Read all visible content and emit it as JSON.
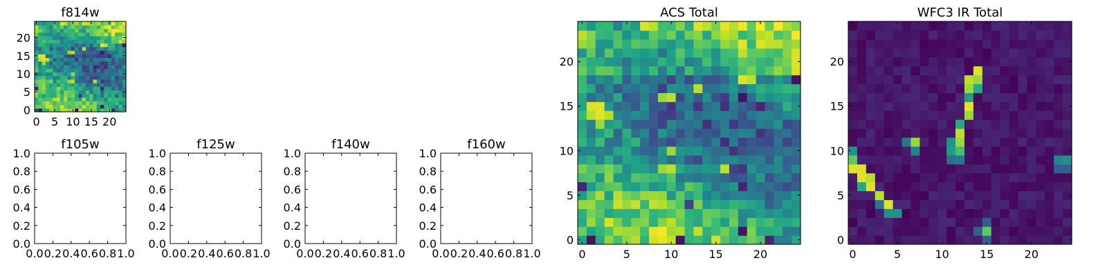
{
  "chart_data": [
    {
      "id": "f814w",
      "type": "heatmap",
      "title": "f814w",
      "colormap": "viridis",
      "xlim": [
        -0.5,
        24.5
      ],
      "ylim": [
        -0.5,
        24.5
      ],
      "xticks": [
        "0",
        "5",
        "10",
        "15",
        "20"
      ],
      "yticks": [
        "0",
        "5",
        "10",
        "15",
        "20"
      ],
      "xtick_values": [
        0,
        5,
        10,
        15,
        20
      ],
      "ytick_values": [
        0,
        5,
        10,
        15,
        20
      ],
      "grid_size": [
        25,
        25
      ],
      "values_source": "acs_total"
    },
    {
      "id": "f105w",
      "type": "empty",
      "title": "f105w",
      "xlim": [
        0,
        1
      ],
      "ylim": [
        0,
        1
      ],
      "xticks": [
        "0.0",
        "0.2",
        "0.4",
        "0.6",
        "0.8",
        "1.0"
      ],
      "yticks": [
        "0.0",
        "0.2",
        "0.4",
        "0.6",
        "0.8",
        "1.0"
      ]
    },
    {
      "id": "f125w",
      "type": "empty",
      "title": "f125w",
      "xlim": [
        0,
        1
      ],
      "ylim": [
        0,
        1
      ],
      "xticks": [
        "0.0",
        "0.2",
        "0.4",
        "0.6",
        "0.8",
        "1.0"
      ],
      "yticks": [
        "0.0",
        "0.2",
        "0.4",
        "0.6",
        "0.8",
        "1.0"
      ]
    },
    {
      "id": "f140w",
      "type": "empty",
      "title": "f140w",
      "xlim": [
        0,
        1
      ],
      "ylim": [
        0,
        1
      ],
      "xticks": [
        "0.0",
        "0.2",
        "0.4",
        "0.6",
        "0.8",
        "1.0"
      ],
      "yticks": [
        "0.0",
        "0.2",
        "0.4",
        "0.6",
        "0.8",
        "1.0"
      ]
    },
    {
      "id": "f160w",
      "type": "empty",
      "title": "f160w",
      "xlim": [
        0,
        1
      ],
      "ylim": [
        0,
        1
      ],
      "xticks": [
        "0.0",
        "0.2",
        "0.4",
        "0.6",
        "0.8",
        "1.0"
      ],
      "yticks": [
        "0.0",
        "0.2",
        "0.4",
        "0.6",
        "0.8",
        "1.0"
      ]
    },
    {
      "id": "acs_total",
      "type": "heatmap",
      "title": "ACS Total",
      "colormap": "viridis",
      "xlim": [
        -0.5,
        24.5
      ],
      "ylim": [
        -0.5,
        24.5
      ],
      "xticks": [
        "0",
        "5",
        "10",
        "15",
        "20"
      ],
      "yticks": [
        "0",
        "5",
        "10",
        "15",
        "20"
      ],
      "xtick_values": [
        0,
        5,
        10,
        15,
        20
      ],
      "ytick_values": [
        0,
        5,
        10,
        15,
        20
      ],
      "grid_size": [
        25,
        25
      ],
      "background_level": 0.55,
      "features": [
        {
          "x": 0,
          "y": 23,
          "v": 0.9
        },
        {
          "x": 0,
          "y": 22,
          "v": 0.85
        },
        {
          "x": 1,
          "y": 22,
          "v": 0.8
        },
        {
          "x": 7,
          "y": 24,
          "v": 0.95
        },
        {
          "x": 8,
          "y": 24,
          "v": 0.9
        },
        {
          "x": 13,
          "y": 24,
          "v": 0.95
        },
        {
          "x": 14,
          "y": 24,
          "v": 0.9
        },
        {
          "x": 18,
          "y": 18,
          "v": 0.95
        },
        {
          "x": 19,
          "y": 18,
          "v": 0.9
        },
        {
          "x": 24,
          "y": 20,
          "v": 0.95
        },
        {
          "x": 24,
          "y": 18,
          "v": 0.05
        },
        {
          "x": 1,
          "y": 15,
          "v": 0.95
        },
        {
          "x": 2,
          "y": 15,
          "v": 0.95
        },
        {
          "x": 1,
          "y": 14,
          "v": 0.9
        },
        {
          "x": 2,
          "y": 14,
          "v": 0.95
        },
        {
          "x": 3,
          "y": 14,
          "v": 0.9
        },
        {
          "x": 2,
          "y": 13,
          "v": 0.85
        },
        {
          "x": 10,
          "y": 16,
          "v": 0.9
        },
        {
          "x": 9,
          "y": 16,
          "v": 0.85
        },
        {
          "x": 13,
          "y": 17,
          "v": 0.9
        },
        {
          "x": 10,
          "y": 10,
          "v": 0.85
        },
        {
          "x": 10,
          "y": 8,
          "v": 0.9
        },
        {
          "x": 9,
          "y": 8,
          "v": 0.85
        },
        {
          "x": 16,
          "y": 8,
          "v": 0.9
        },
        {
          "x": 18,
          "y": 16,
          "v": 0.05
        },
        {
          "x": 20,
          "y": 15,
          "v": 0.1
        },
        {
          "x": 10,
          "y": 15,
          "v": 0.15
        },
        {
          "x": 18,
          "y": 6,
          "v": 0.1
        },
        {
          "x": 18,
          "y": 1,
          "v": 0.05
        },
        {
          "x": 11,
          "y": 0,
          "v": 0.05
        },
        {
          "x": 1,
          "y": 0,
          "v": 0.05
        },
        {
          "x": 0,
          "y": 6,
          "v": 0.1
        },
        {
          "x": 18,
          "y": 8,
          "v": 0.15
        },
        {
          "x": 18,
          "y": 11,
          "v": 0.2
        },
        {
          "x": 21,
          "y": 0,
          "v": 0.1
        },
        {
          "x": 12,
          "y": 4,
          "v": 0.2
        }
      ]
    },
    {
      "id": "wfc3_ir_total",
      "type": "heatmap",
      "title": "WFC3 IR Total",
      "colormap": "viridis",
      "xlim": [
        -0.5,
        24.5
      ],
      "ylim": [
        -0.5,
        24.5
      ],
      "xticks": [
        "0",
        "5",
        "10",
        "15",
        "20"
      ],
      "yticks": [
        "0",
        "5",
        "10",
        "15",
        "20"
      ],
      "xtick_values": [
        0,
        5,
        10,
        15,
        20
      ],
      "ytick_values": [
        0,
        5,
        10,
        15,
        20
      ],
      "grid_size": [
        25,
        25
      ],
      "background_level": 0.06,
      "features": [
        {
          "x": 0,
          "y": 10,
          "v": 0.5
        },
        {
          "x": 0,
          "y": 9,
          "v": 0.75
        },
        {
          "x": 0,
          "y": 8,
          "v": 0.95
        },
        {
          "x": 1,
          "y": 8,
          "v": 0.95
        },
        {
          "x": 1,
          "y": 7,
          "v": 0.95
        },
        {
          "x": 2,
          "y": 7,
          "v": 0.9
        },
        {
          "x": 2,
          "y": 6,
          "v": 0.95
        },
        {
          "x": 1,
          "y": 6,
          "v": 0.6
        },
        {
          "x": 3,
          "y": 5,
          "v": 0.9
        },
        {
          "x": 4,
          "y": 4,
          "v": 0.95
        },
        {
          "x": 4,
          "y": 3,
          "v": 0.5
        },
        {
          "x": 5,
          "y": 3,
          "v": 0.5
        },
        {
          "x": 3,
          "y": 4,
          "v": 0.4
        },
        {
          "x": 6,
          "y": 11,
          "v": 0.4
        },
        {
          "x": 7,
          "y": 11,
          "v": 0.85
        },
        {
          "x": 7,
          "y": 10,
          "v": 0.45
        },
        {
          "x": 11,
          "y": 11,
          "v": 0.5
        },
        {
          "x": 11,
          "y": 10,
          "v": 0.55
        },
        {
          "x": 12,
          "y": 12,
          "v": 0.9
        },
        {
          "x": 12,
          "y": 11,
          "v": 0.85
        },
        {
          "x": 12,
          "y": 10,
          "v": 0.7
        },
        {
          "x": 12,
          "y": 9,
          "v": 0.4
        },
        {
          "x": 11,
          "y": 9,
          "v": 0.35
        },
        {
          "x": 12,
          "y": 13,
          "v": 0.6
        },
        {
          "x": 13,
          "y": 14,
          "v": 0.85
        },
        {
          "x": 13,
          "y": 15,
          "v": 0.95
        },
        {
          "x": 13,
          "y": 16,
          "v": 0.55
        },
        {
          "x": 13,
          "y": 17,
          "v": 0.85
        },
        {
          "x": 13,
          "y": 18,
          "v": 0.9
        },
        {
          "x": 14,
          "y": 17,
          "v": 0.6
        },
        {
          "x": 14,
          "y": 18,
          "v": 0.85
        },
        {
          "x": 14,
          "y": 19,
          "v": 0.95
        },
        {
          "x": 15,
          "y": 1,
          "v": 0.75
        },
        {
          "x": 14,
          "y": 1,
          "v": 0.3
        },
        {
          "x": 15,
          "y": 2,
          "v": 0.3
        },
        {
          "x": 15,
          "y": 0,
          "v": 0.3
        },
        {
          "x": 23,
          "y": 9,
          "v": 0.45
        },
        {
          "x": 24,
          "y": 9,
          "v": 0.5
        },
        {
          "x": 23,
          "y": 8,
          "v": 0.3
        },
        {
          "x": 24,
          "y": 8,
          "v": 0.3
        }
      ]
    }
  ]
}
